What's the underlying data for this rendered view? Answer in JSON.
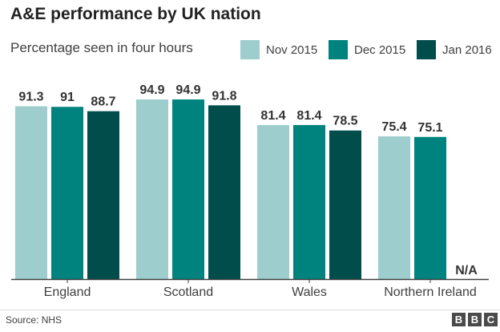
{
  "chart_data": {
    "type": "bar",
    "title": "A&E performance by UK nation",
    "ylabel": "Percentage seen in four hours",
    "categories": [
      "England",
      "Scotland",
      "Wales",
      "Northern Ireland"
    ],
    "series": [
      {
        "name": "Nov 2015",
        "color": "#9dcdcd",
        "values": [
          91.3,
          94.9,
          81.4,
          75.4
        ],
        "labels": [
          "91.3",
          "94.9",
          "81.4",
          "75.4"
        ]
      },
      {
        "name": "Dec 2015",
        "color": "#00837e",
        "values": [
          91,
          94.9,
          81.4,
          75.1
        ],
        "labels": [
          "91",
          "94.9",
          "81.4",
          "75.1"
        ]
      },
      {
        "name": "Jan 2016",
        "color": "#004d4b",
        "values": [
          88.7,
          91.8,
          78.5,
          null
        ],
        "labels": [
          "88.7",
          "91.8",
          "78.5",
          "N/A"
        ]
      }
    ],
    "ylim": [
      0,
      100
    ],
    "grid": false,
    "legend": "top-right"
  },
  "source": "Source: NHS",
  "logo": {
    "letters": [
      "B",
      "B",
      "C"
    ]
  }
}
